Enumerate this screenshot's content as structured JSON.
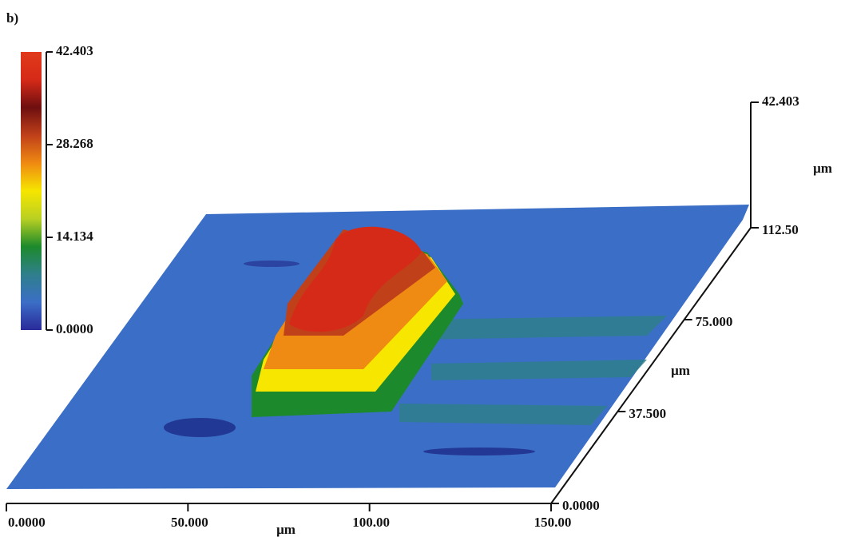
{
  "chart_data": {
    "type": "surface3d",
    "panel_label": "b)",
    "xlabel": "μm",
    "ylabel": "μm",
    "zlabel": "μm",
    "xlim": [
      0,
      150
    ],
    "xticks": [
      {
        "value": 0,
        "label": "0.0000"
      },
      {
        "value": 50,
        "label": "50.000"
      },
      {
        "value": 100,
        "label": "100.00"
      },
      {
        "value": 150,
        "label": "150.00"
      }
    ],
    "ylim": [
      0,
      112.5
    ],
    "yticks": [
      {
        "value": 0,
        "label": "0.0000"
      },
      {
        "value": 37.5,
        "label": "37.500"
      },
      {
        "value": 75,
        "label": "75.000"
      },
      {
        "value": 112.5,
        "label": "112.50"
      }
    ],
    "zlim": [
      0,
      42.403
    ],
    "zticks": [
      42.403
    ],
    "clim": [
      0,
      42.403
    ],
    "cticks": [
      {
        "value": 0,
        "label": "0.0000"
      },
      14.134,
      28.268,
      42.403
    ],
    "colormap": [
      "#2a2a9a",
      "#3b6ec6",
      "#2f7f8c",
      "#1c8a2c",
      "#b9d022",
      "#f6e600",
      "#ef8a12",
      "#c0401a",
      "#6e0f10",
      "#d62a18",
      "#e03a1a"
    ]
  }
}
